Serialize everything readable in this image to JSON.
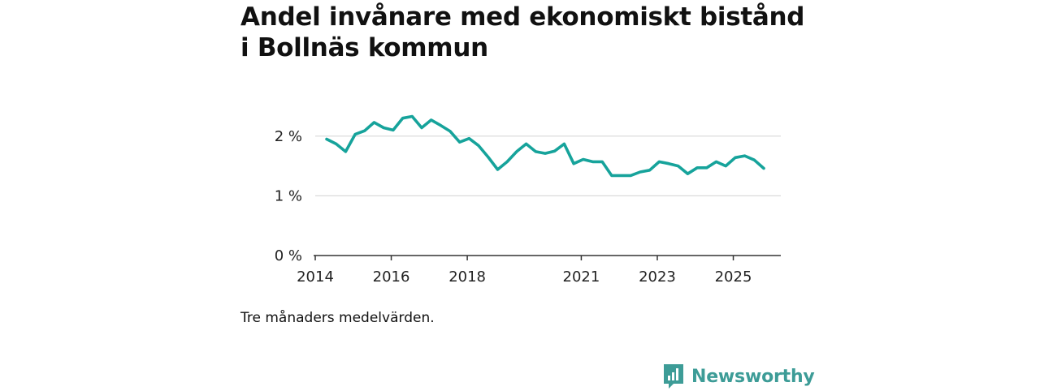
{
  "header": {
    "title": "Andel invånare med ekonomiskt bistånd i Bollnäs kommun"
  },
  "footer": {
    "note": "Tre månaders medelvärden."
  },
  "brand": {
    "name": "Newsworthy",
    "icon": "newsworthy-logo-icon",
    "color": "#3d9c97"
  },
  "colors": {
    "line": "#16a39b",
    "grid": "#d9d9d9",
    "axis": "#333333"
  },
  "chart_data": {
    "type": "line",
    "title": "Andel invånare med ekonomiskt bistånd i Bollnäs kommun",
    "xlabel": "",
    "ylabel": "",
    "ylim": [
      0,
      2.5
    ],
    "xlim": [
      2014,
      2026.25
    ],
    "grid": true,
    "yticks": [
      {
        "value": 0,
        "label": "0 %"
      },
      {
        "value": 1,
        "label": "1 %"
      },
      {
        "value": 2,
        "label": "2 %"
      }
    ],
    "xticks": [
      {
        "value": 2014,
        "label": "2014"
      },
      {
        "value": 2016,
        "label": "2016"
      },
      {
        "value": 2018,
        "label": "2018"
      },
      {
        "value": 2021,
        "label": "2021"
      },
      {
        "value": 2023,
        "label": "2023"
      },
      {
        "value": 2025,
        "label": "2025"
      }
    ],
    "series": [
      {
        "name": "Andel invånare med ekonomiskt bistånd",
        "x": [
          2014.3,
          2014.55,
          2014.8,
          2015.05,
          2015.3,
          2015.55,
          2015.8,
          2016.05,
          2016.3,
          2016.55,
          2016.8,
          2017.05,
          2017.3,
          2017.55,
          2017.8,
          2018.05,
          2018.3,
          2018.55,
          2018.8,
          2019.05,
          2019.3,
          2019.55,
          2019.8,
          2020.05,
          2020.3,
          2020.55,
          2020.8,
          2021.05,
          2021.3,
          2021.55,
          2021.8,
          2022.05,
          2022.3,
          2022.55,
          2022.8,
          2023.05,
          2023.3,
          2023.55,
          2023.8,
          2024.05,
          2024.3,
          2024.55,
          2024.8,
          2025.05,
          2025.3,
          2025.55,
          2025.8
        ],
        "values": [
          1.95,
          1.87,
          1.74,
          2.03,
          2.09,
          2.23,
          2.14,
          2.1,
          2.3,
          2.33,
          2.14,
          2.27,
          2.18,
          2.08,
          1.9,
          1.96,
          1.84,
          1.65,
          1.44,
          1.57,
          1.74,
          1.87,
          1.74,
          1.71,
          1.75,
          1.87,
          1.54,
          1.61,
          1.57,
          1.57,
          1.34,
          1.34,
          1.34,
          1.4,
          1.43,
          1.57,
          1.54,
          1.5,
          1.37,
          1.47,
          1.47,
          1.57,
          1.5,
          1.64,
          1.67,
          1.6,
          1.46
        ]
      }
    ]
  }
}
